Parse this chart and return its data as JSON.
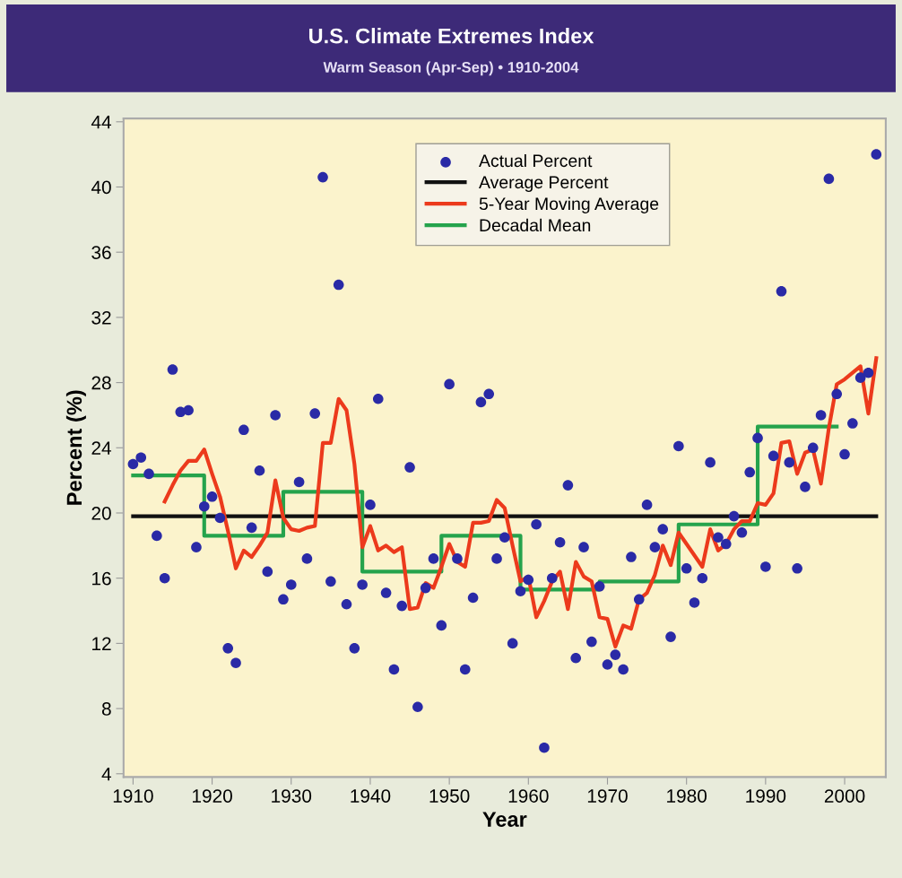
{
  "chart_data": {
    "type": "scatter",
    "title": "U.S. Climate Extremes Index",
    "subtitle": "Warm Season (Apr-Sep) • 1910-2004",
    "xlabel": "Year",
    "ylabel": "Percent (%)",
    "xlim": [
      1908.8,
      2005.2
    ],
    "xticks": [
      1910,
      1920,
      1930,
      1940,
      1950,
      1960,
      1970,
      1980,
      1990,
      2000
    ],
    "ylim": [
      3.8,
      44.2
    ],
    "yticks": [
      4,
      8,
      12,
      16,
      20,
      24,
      28,
      32,
      36,
      40,
      44
    ],
    "legend": "top",
    "grid": false,
    "series": [
      {
        "name": "Actual Percent",
        "marker": "circle",
        "color": "#2a2aa6",
        "x": [
          1910,
          1911,
          1912,
          1913,
          1914,
          1915,
          1916,
          1917,
          1918,
          1919,
          1920,
          1921,
          1922,
          1923,
          1924,
          1925,
          1926,
          1927,
          1928,
          1929,
          1930,
          1931,
          1932,
          1933,
          1934,
          1935,
          1936,
          1937,
          1938,
          1939,
          1940,
          1941,
          1942,
          1943,
          1944,
          1945,
          1946,
          1947,
          1948,
          1949,
          1950,
          1951,
          1952,
          1953,
          1954,
          1955,
          1956,
          1957,
          1958,
          1959,
          1960,
          1961,
          1962,
          1963,
          1964,
          1965,
          1966,
          1967,
          1968,
          1969,
          1970,
          1971,
          1972,
          1973,
          1974,
          1975,
          1976,
          1977,
          1978,
          1979,
          1980,
          1981,
          1982,
          1983,
          1984,
          1985,
          1986,
          1987,
          1988,
          1989,
          1990,
          1991,
          1992,
          1993,
          1994,
          1995,
          1996,
          1997,
          1998,
          1999,
          2000,
          2001,
          2002,
          2003,
          2004
        ],
        "values": [
          23.0,
          23.4,
          22.4,
          18.6,
          16.0,
          28.8,
          26.2,
          26.3,
          17.9,
          20.4,
          21.0,
          19.7,
          11.7,
          10.8,
          25.1,
          19.1,
          22.6,
          16.4,
          26.0,
          14.7,
          15.6,
          21.9,
          17.2,
          26.1,
          40.6,
          15.8,
          34.0,
          14.4,
          11.7,
          15.6,
          20.5,
          27.0,
          15.1,
          10.4,
          14.3,
          22.8,
          8.1,
          15.4,
          17.2,
          13.1,
          27.9,
          17.2,
          10.4,
          14.8,
          26.8,
          27.3,
          17.2,
          18.5,
          12.0,
          15.2,
          15.9,
          19.3,
          5.6,
          16.0,
          18.2,
          21.7,
          11.1,
          17.9,
          12.1,
          15.5,
          10.7,
          11.3,
          10.4,
          17.3,
          14.7,
          20.5,
          17.9,
          19.0,
          12.4,
          24.1,
          16.6,
          14.5,
          16.0,
          23.1,
          18.5,
          18.1,
          19.8,
          18.8,
          22.5,
          24.6,
          16.7,
          23.5,
          33.6,
          23.1,
          16.6,
          21.6,
          24.0,
          26.0,
          40.5,
          27.3,
          23.6,
          25.5,
          28.3,
          28.6,
          42.0
        ]
      },
      {
        "name": "Average Percent",
        "type": "line",
        "color": "#111111",
        "x": [
          1910,
          2004
        ],
        "values": [
          19.8,
          19.8
        ]
      },
      {
        "name": "5-Year Moving Average",
        "type": "line",
        "color": "#ec3a1c",
        "x": [
          1914,
          1915,
          1916,
          1917,
          1918,
          1919,
          1920,
          1921,
          1922,
          1923,
          1924,
          1925,
          1926,
          1927,
          1928,
          1929,
          1930,
          1931,
          1932,
          1933,
          1934,
          1935,
          1936,
          1937,
          1938,
          1939,
          1940,
          1941,
          1942,
          1943,
          1944,
          1945,
          1946,
          1947,
          1948,
          1949,
          1950,
          1951,
          1952,
          1953,
          1954,
          1955,
          1956,
          1957,
          1958,
          1959,
          1960,
          1961,
          1962,
          1963,
          1964,
          1965,
          1966,
          1967,
          1968,
          1969,
          1970,
          1971,
          1972,
          1973,
          1974,
          1975,
          1976,
          1977,
          1978,
          1979,
          1980,
          1981,
          1982,
          1983,
          1984,
          1985,
          1986,
          1987,
          1988,
          1989,
          1990,
          1991,
          1992,
          1993,
          1994,
          1995,
          1996,
          1997,
          1998,
          1999,
          2000,
          2001,
          2002,
          2003,
          2004
        ],
        "values": [
          20.7,
          21.7,
          22.6,
          23.2,
          23.2,
          23.9,
          22.4,
          21.0,
          18.9,
          16.6,
          17.7,
          17.3,
          18.0,
          18.8,
          22.0,
          19.7,
          19.0,
          18.9,
          19.1,
          19.2,
          24.3,
          24.3,
          27.0,
          26.3,
          23.0,
          17.9,
          19.2,
          17.7,
          18.0,
          17.6,
          17.9,
          14.1,
          14.2,
          15.7,
          15.4,
          16.7,
          18.1,
          17.0,
          16.7,
          19.4,
          19.4,
          19.5,
          20.8,
          20.3,
          18.0,
          15.8,
          16.1,
          13.6,
          14.6,
          15.8,
          16.4,
          14.1,
          17.0,
          16.1,
          15.8,
          13.6,
          13.5,
          11.8,
          13.1,
          12.9,
          14.7,
          15.1,
          16.2,
          18.0,
          16.8,
          18.8,
          18.1,
          17.4,
          16.7,
          19.0,
          17.7,
          18.1,
          19.0,
          19.5,
          19.5,
          20.6,
          20.5,
          21.2,
          24.3,
          24.4,
          22.4,
          23.7,
          23.9,
          21.8,
          25.2,
          27.9,
          28.2,
          28.6,
          29.0,
          26.1,
          29.5
        ]
      },
      {
        "name": "Decadal Mean",
        "type": "step",
        "color": "#25a34c",
        "x": [
          1910,
          1919,
          1929,
          1939,
          1949,
          1959,
          1969,
          1979,
          1989,
          1999
        ],
        "values": [
          22.3,
          18.6,
          21.3,
          16.4,
          18.6,
          15.3,
          15.8,
          19.3,
          25.3,
          25.3
        ]
      }
    ]
  }
}
